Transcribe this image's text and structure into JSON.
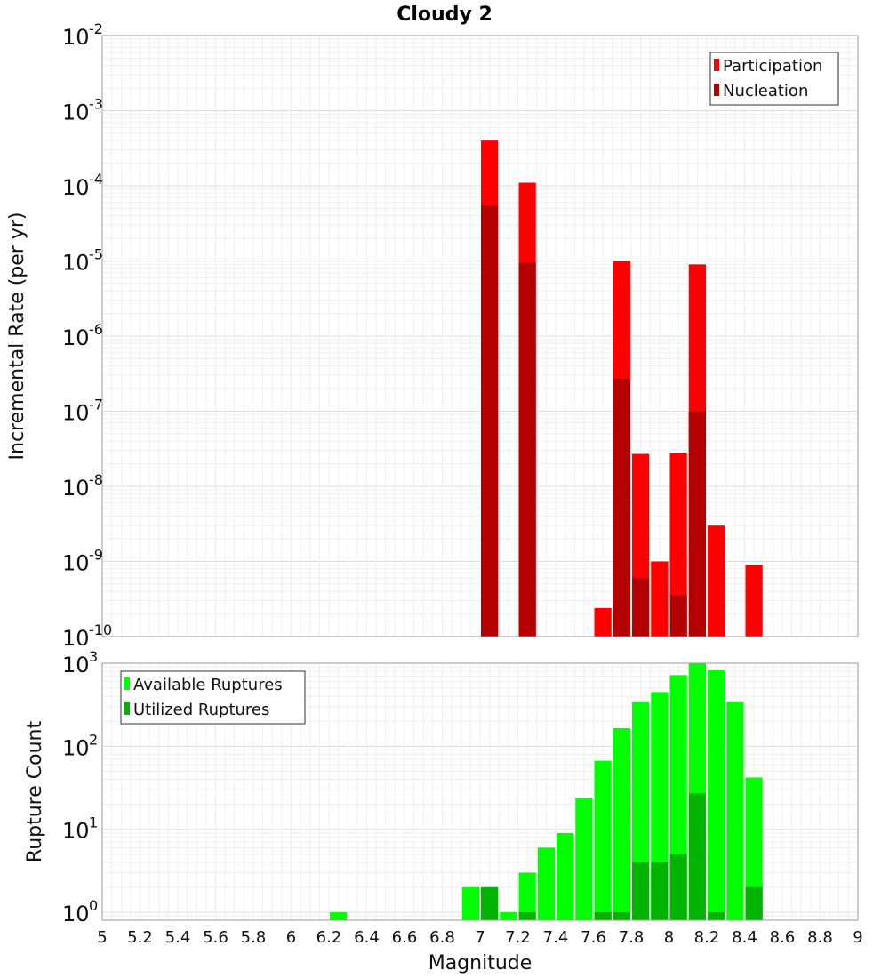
{
  "chart_data": {
    "type": "bar",
    "title": "Cloudy 2",
    "xlabel": "Magnitude",
    "x_ticks": [
      "5",
      "5.2",
      "5.4",
      "5.6",
      "5.8",
      "6",
      "6.2",
      "6.4",
      "6.6",
      "6.8",
      "7",
      "7.2",
      "7.4",
      "7.6",
      "7.8",
      "8",
      "8.2",
      "8.4",
      "8.6",
      "8.8",
      "9"
    ],
    "xlim": [
      5,
      9
    ],
    "bin_width": 0.1,
    "panels": [
      {
        "id": "rate",
        "ylabel": "Incremental Rate (per yr)",
        "yscale": "log",
        "ylim": [
          1e-10,
          0.01
        ],
        "y_ticks": [
          {
            "base": "10",
            "exp": "-2"
          },
          {
            "base": "10",
            "exp": "-3"
          },
          {
            "base": "10",
            "exp": "-4"
          },
          {
            "base": "10",
            "exp": "-5"
          },
          {
            "base": "10",
            "exp": "-6"
          },
          {
            "base": "10",
            "exp": "-7"
          },
          {
            "base": "10",
            "exp": "-8"
          },
          {
            "base": "10",
            "exp": "-9"
          },
          {
            "base": "10",
            "exp": "-10"
          }
        ],
        "legend_position": "top-right",
        "series": [
          {
            "name": "Participation",
            "color": "#ff0000",
            "x": [
              7.05,
              7.25,
              7.65,
              7.75,
              7.85,
              7.95,
              8.05,
              8.15,
              8.25,
              8.45
            ],
            "values": [
              0.0004,
              0.00011,
              2.4e-10,
              1e-05,
              2.7e-08,
              1e-09,
              2.8e-08,
              9e-06,
              3e-09,
              9e-10
            ]
          },
          {
            "name": "Nucleation",
            "color": "#b40000",
            "x": [
              7.05,
              7.25,
              7.75,
              7.85,
              8.05,
              8.15
            ],
            "values": [
              5.5e-05,
              9.5e-06,
              2.7e-07,
              6e-10,
              3.6e-10,
              1e-07
            ]
          }
        ]
      },
      {
        "id": "count",
        "ylabel": "Rupture Count",
        "yscale": "log",
        "ylim": [
          0.8,
          1000
        ],
        "y_ticks": [
          {
            "base": "10",
            "exp": "3"
          },
          {
            "base": "10",
            "exp": "2"
          },
          {
            "base": "10",
            "exp": "1"
          },
          {
            "base": "10",
            "exp": "0"
          }
        ],
        "legend_position": "top-left",
        "series": [
          {
            "name": "Available Ruptures",
            "color": "#00ff00",
            "x": [
              6.25,
              6.95,
              7.05,
              7.15,
              7.25,
              7.35,
              7.45,
              7.55,
              7.65,
              7.75,
              7.85,
              7.95,
              8.05,
              8.15,
              8.25,
              8.35,
              8.45
            ],
            "values": [
              1,
              2,
              2,
              1,
              3,
              6,
              9,
              24,
              67,
              165,
              340,
              450,
              720,
              1000,
              820,
              340,
              42
            ]
          },
          {
            "name": "Utilized Ruptures",
            "color": "#00b400",
            "x": [
              7.05,
              7.25,
              7.65,
              7.75,
              7.85,
              7.95,
              8.05,
              8.15,
              8.25,
              8.45
            ],
            "values": [
              2,
              1,
              1,
              1,
              4,
              4,
              5,
              27,
              1,
              2
            ]
          }
        ]
      }
    ]
  }
}
